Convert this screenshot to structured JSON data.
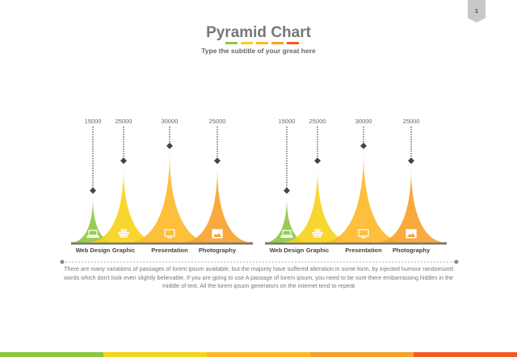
{
  "slide": {
    "page_number": "1",
    "title": "Pyramid Chart",
    "subtitle": "Type the subtitle of your great here",
    "paragraph": "There are many variations of passages of lorem ipsum available, but the majority have suffered alteration in some form, by injected humour randomized words which don't look even slightly believable. If you are going to use A passage of lorem ipsum, you need to be sure there embarrassing hidden in the middle of text. All the lorem ipsum generators on the internet tend to repeat",
    "accent_colors": [
      "#8cc63f",
      "#f7d21a",
      "#fdb827",
      "#f7a12a",
      "#f15a22"
    ]
  },
  "chart_data": [
    {
      "type": "pyramid",
      "categories": [
        "Web Design",
        "Graphic",
        "Presentation",
        "Photography"
      ],
      "values": [
        15000,
        25000,
        30000,
        25000
      ],
      "data_labels": [
        "15000",
        "25000",
        "30000",
        "25000"
      ],
      "colors": [
        "#8cc63f",
        "#f7d21a",
        "#fdb827",
        "#f7a12a"
      ],
      "icons": [
        "laptop-icon",
        "bars-icon",
        "monitor-icon",
        "picture-icon"
      ]
    },
    {
      "type": "pyramid",
      "categories": [
        "Web Design",
        "Graphic",
        "Presentation",
        "Photography"
      ],
      "values": [
        15000,
        25000,
        30000,
        25000
      ],
      "data_labels": [
        "15000",
        "25000",
        "30000",
        "25000"
      ],
      "colors": [
        "#8cc63f",
        "#f7d21a",
        "#fdb827",
        "#f7a12a"
      ],
      "icons": [
        "laptop-icon",
        "bars-icon",
        "monitor-icon",
        "picture-icon"
      ]
    }
  ]
}
